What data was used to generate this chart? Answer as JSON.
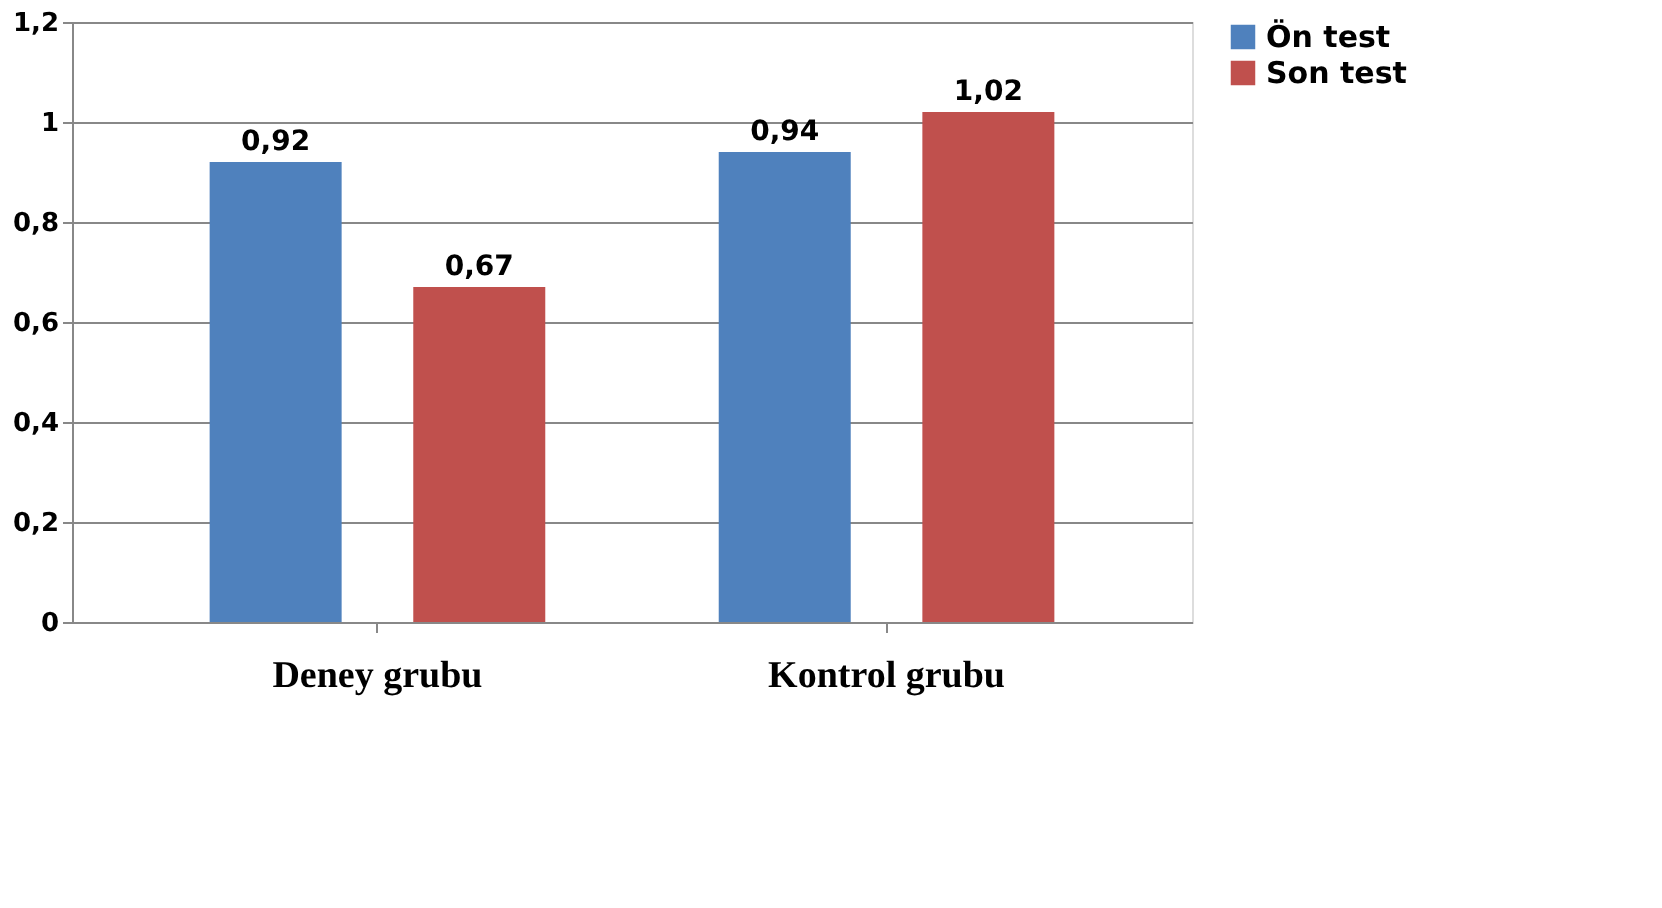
{
  "chart_data": {
    "type": "bar",
    "categories": [
      "Deney grubu",
      "Kontrol grubu"
    ],
    "series": [
      {
        "name": "Ön test",
        "color": "#4f81bd",
        "values": [
          0.92,
          0.94
        ],
        "value_labels": [
          "0,92",
          "0,94"
        ]
      },
      {
        "name": "Son test",
        "color": "#c0504d",
        "values": [
          0.67,
          1.02
        ],
        "value_labels": [
          "0,67",
          "1,02"
        ]
      }
    ],
    "ylim": [
      0,
      1.2
    ],
    "yticks": [
      0,
      {
        "value": 0.2,
        "label": "0,2"
      },
      {
        "value": 0.4,
        "label": "0,4"
      },
      {
        "value": 0.6,
        "label": "0,6"
      },
      {
        "value": 0.8,
        "label": "0,8"
      },
      1,
      {
        "value": 1.2,
        "label": "1,2"
      }
    ],
    "grid": "y",
    "legend": "right"
  }
}
